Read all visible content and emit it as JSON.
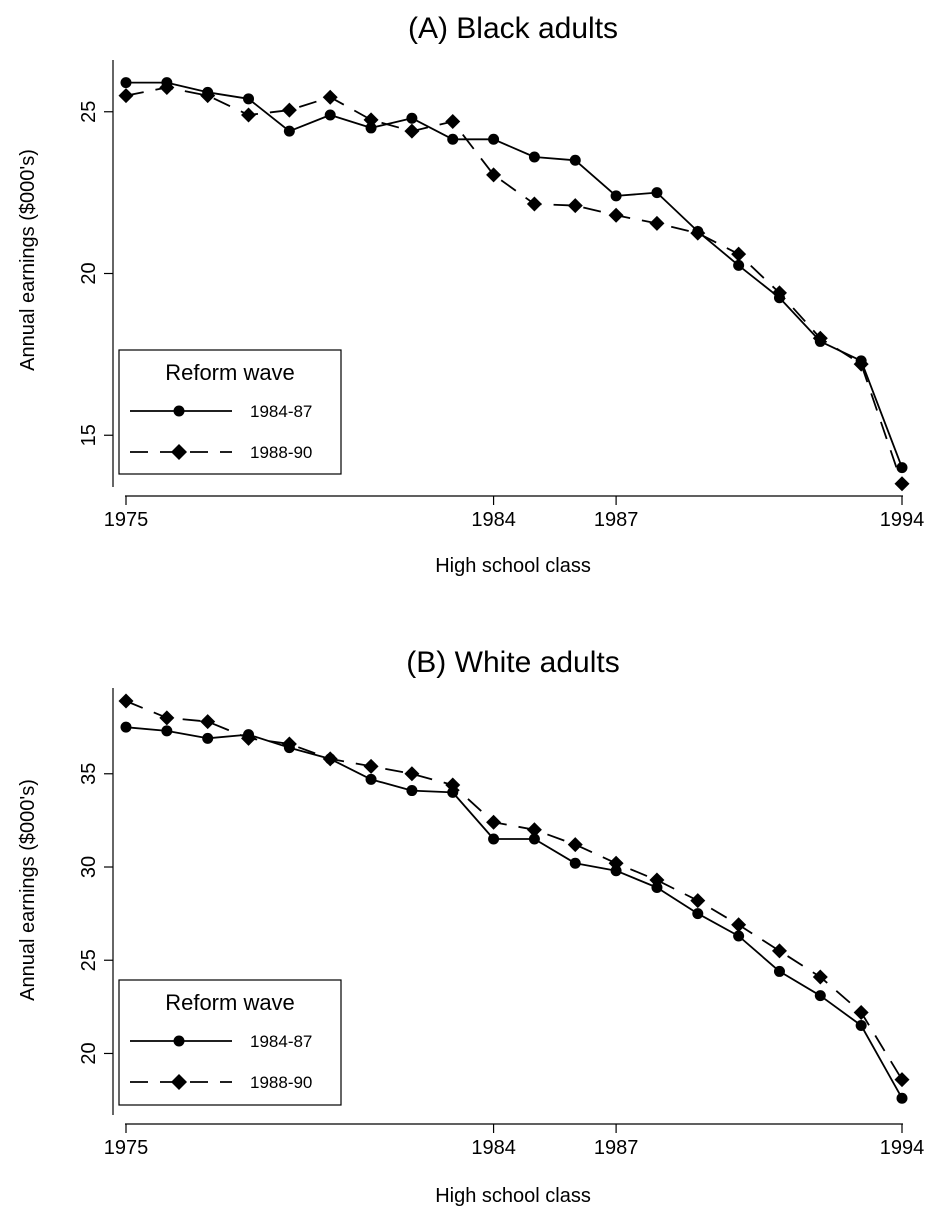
{
  "chart_data": [
    {
      "type": "line",
      "title": "(A) Black adults",
      "xlabel": "High school class",
      "ylabel": "Annual earnings ($000's)",
      "xlim": [
        1975,
        1994
      ],
      "ylim": [
        13.4,
        26.6
      ],
      "xticks": [
        {
          "value": 1975,
          "label": "1975"
        },
        {
          "value": 1984,
          "label": "1984"
        },
        {
          "value": 1987,
          "label": "1987"
        },
        {
          "value": 1994,
          "label": "1994"
        }
      ],
      "yticks": [
        {
          "value": 15,
          "label": "15"
        },
        {
          "value": 20,
          "label": "20"
        },
        {
          "value": 25,
          "label": "25"
        }
      ],
      "legend": {
        "title": "Reform wave",
        "position": "bottom-left"
      },
      "x": [
        1975,
        1976,
        1977,
        1978,
        1979,
        1980,
        1981,
        1982,
        1983,
        1984,
        1985,
        1986,
        1987,
        1988,
        1989,
        1990,
        1991,
        1992,
        1993,
        1994
      ],
      "series": [
        {
          "name": "1984-87",
          "style": "solid",
          "marker": "circle",
          "values": [
            25.9,
            25.9,
            25.6,
            25.4,
            24.4,
            24.9,
            24.5,
            24.8,
            24.15,
            24.15,
            23.6,
            23.5,
            22.4,
            22.5,
            21.3,
            20.25,
            19.25,
            17.9,
            17.3,
            14.0
          ]
        },
        {
          "name": "1988-90",
          "style": "dashed",
          "marker": "diamond",
          "values": [
            25.5,
            25.75,
            25.5,
            24.9,
            25.05,
            25.45,
            24.75,
            24.4,
            24.7,
            23.05,
            22.15,
            22.1,
            21.8,
            21.55,
            21.25,
            20.6,
            19.4,
            18.0,
            17.2,
            13.5
          ]
        }
      ]
    },
    {
      "type": "line",
      "title": "(B) White adults",
      "xlabel": "High school class",
      "ylabel": "Annual earnings ($000's)",
      "xlim": [
        1975,
        1994
      ],
      "ylim": [
        16.7,
        39.6
      ],
      "xticks": [
        {
          "value": 1975,
          "label": "1975"
        },
        {
          "value": 1984,
          "label": "1984"
        },
        {
          "value": 1987,
          "label": "1987"
        },
        {
          "value": 1994,
          "label": "1994"
        }
      ],
      "yticks": [
        {
          "value": 20,
          "label": "20"
        },
        {
          "value": 25,
          "label": "25"
        },
        {
          "value": 30,
          "label": "30"
        },
        {
          "value": 35,
          "label": "35"
        }
      ],
      "legend": {
        "title": "Reform wave",
        "position": "bottom-left"
      },
      "x": [
        1975,
        1976,
        1977,
        1978,
        1979,
        1980,
        1981,
        1982,
        1983,
        1984,
        1985,
        1986,
        1987,
        1988,
        1989,
        1990,
        1991,
        1992,
        1993,
        1994
      ],
      "series": [
        {
          "name": "1984-87",
          "style": "solid",
          "marker": "circle",
          "values": [
            37.5,
            37.3,
            36.9,
            37.1,
            36.4,
            35.8,
            34.7,
            34.1,
            34.0,
            31.5,
            31.5,
            30.2,
            29.8,
            28.9,
            27.5,
            26.3,
            24.4,
            23.1,
            21.5,
            17.6
          ]
        },
        {
          "name": "1988-90",
          "style": "dashed",
          "marker": "diamond",
          "values": [
            38.9,
            38.0,
            37.8,
            36.9,
            36.6,
            35.8,
            35.4,
            35.0,
            34.4,
            32.4,
            32.0,
            31.2,
            30.2,
            29.3,
            28.2,
            26.9,
            25.5,
            24.1,
            22.2,
            18.6
          ]
        }
      ]
    }
  ]
}
